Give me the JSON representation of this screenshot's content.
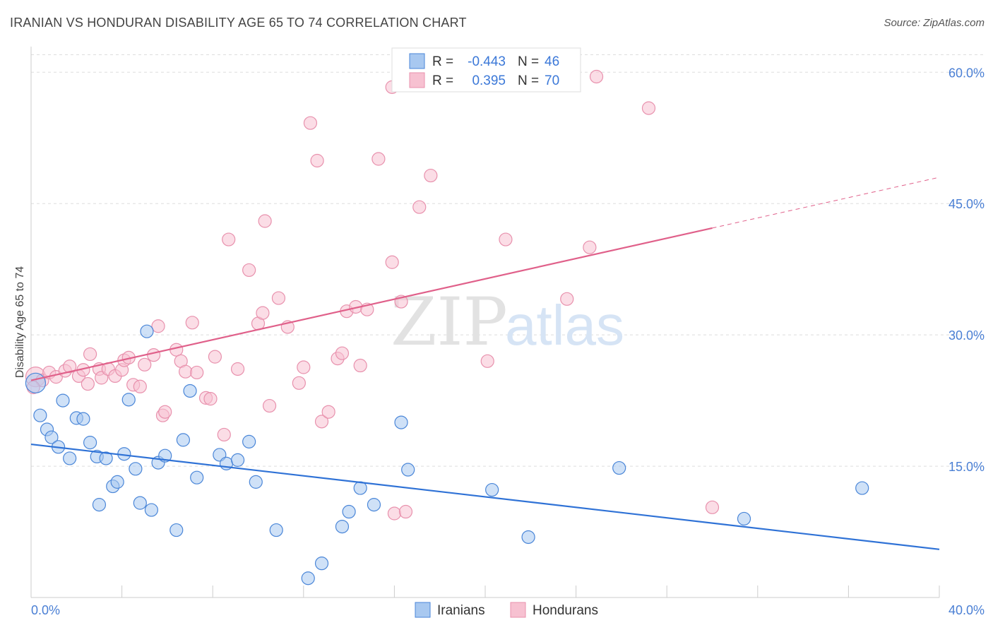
{
  "title": "IRANIAN VS HONDURAN DISABILITY AGE 65 TO 74 CORRELATION CHART",
  "source": "Source: ZipAtlas.com",
  "watermark": {
    "zip": "ZIP",
    "atlas": "atlas"
  },
  "colors": {
    "iranian_fill": "#a8c8f0",
    "iranian_stroke": "#4a86d8",
    "iranian_line": "#2f72d6",
    "honduran_fill": "#f7c1d1",
    "honduran_stroke": "#e891ad",
    "honduran_line": "#e0608a",
    "tick_text": "#4a7fd4",
    "grid": "#dddddd"
  },
  "legend": {
    "rows": [
      {
        "r_label": "R =",
        "r_value": "-0.443",
        "n_label": "N =",
        "n_value": "46"
      },
      {
        "r_label": "R =",
        "r_value": "0.395",
        "n_label": "N =",
        "n_value": "70"
      }
    ]
  },
  "chart_data": {
    "type": "scatter",
    "title": "IRANIAN VS HONDURAN DISABILITY AGE 65 TO 74 CORRELATION CHART",
    "xlabel": "",
    "ylabel": "Disability Age 65 to 74",
    "xlim": [
      0,
      40
    ],
    "ylim": [
      0,
      62
    ],
    "x_tick_labels": [
      "0.0%",
      "40.0%"
    ],
    "y_ticks": [
      15,
      30,
      45,
      60
    ],
    "y_tick_labels": [
      "15.0%",
      "30.0%",
      "45.0%",
      "60.0%"
    ],
    "grid": true,
    "legend_position": "top-center",
    "series": [
      {
        "name": "Iranians",
        "trend": {
          "x0": 0,
          "y0": 17.5,
          "x1": 40,
          "y1": 5.5,
          "dashed_from": null
        },
        "points": [
          [
            0.2,
            24.5
          ],
          [
            0.4,
            20.8
          ],
          [
            0.7,
            19.2
          ],
          [
            0.9,
            18.3
          ],
          [
            1.2,
            17.2
          ],
          [
            1.4,
            22.5
          ],
          [
            1.7,
            15.9
          ],
          [
            2.0,
            20.5
          ],
          [
            2.3,
            20.4
          ],
          [
            2.6,
            17.7
          ],
          [
            2.9,
            16.1
          ],
          [
            3.0,
            10.6
          ],
          [
            3.3,
            15.9
          ],
          [
            3.6,
            12.7
          ],
          [
            3.8,
            13.2
          ],
          [
            4.1,
            16.4
          ],
          [
            4.3,
            22.6
          ],
          [
            4.6,
            14.7
          ],
          [
            4.8,
            10.8
          ],
          [
            5.1,
            30.4
          ],
          [
            5.3,
            10.0
          ],
          [
            5.6,
            15.4
          ],
          [
            5.9,
            16.2
          ],
          [
            6.4,
            7.7
          ],
          [
            6.7,
            18.0
          ],
          [
            7.0,
            23.6
          ],
          [
            7.3,
            13.7
          ],
          [
            8.3,
            16.3
          ],
          [
            8.6,
            15.3
          ],
          [
            9.1,
            15.7
          ],
          [
            9.6,
            17.8
          ],
          [
            9.9,
            13.2
          ],
          [
            10.8,
            7.7
          ],
          [
            12.2,
            2.2
          ],
          [
            12.8,
            3.9
          ],
          [
            13.7,
            8.1
          ],
          [
            14.0,
            9.8
          ],
          [
            14.5,
            12.5
          ],
          [
            15.1,
            10.6
          ],
          [
            16.3,
            20.0
          ],
          [
            16.6,
            14.6
          ],
          [
            20.3,
            12.3
          ],
          [
            21.9,
            6.9
          ],
          [
            25.9,
            14.8
          ],
          [
            31.4,
            9.0
          ],
          [
            36.6,
            12.5
          ]
        ]
      },
      {
        "name": "Hondurans",
        "trend": {
          "x0": 0,
          "y0": 24.8,
          "x1": 40,
          "y1": 48.0,
          "dashed_from": 30
        },
        "points": [
          [
            0.2,
            25.2
          ],
          [
            0.5,
            24.8
          ],
          [
            0.8,
            25.7
          ],
          [
            1.1,
            25.2
          ],
          [
            1.5,
            25.9
          ],
          [
            1.7,
            26.4
          ],
          [
            2.1,
            25.3
          ],
          [
            2.3,
            26.0
          ],
          [
            2.5,
            24.4
          ],
          [
            2.6,
            27.8
          ],
          [
            3.0,
            26.1
          ],
          [
            3.1,
            25.1
          ],
          [
            3.4,
            26.1
          ],
          [
            3.7,
            25.3
          ],
          [
            4.0,
            26.0
          ],
          [
            4.1,
            27.1
          ],
          [
            4.3,
            27.4
          ],
          [
            4.5,
            24.3
          ],
          [
            4.8,
            24.1
          ],
          [
            5.0,
            26.6
          ],
          [
            5.4,
            27.7
          ],
          [
            5.6,
            31.0
          ],
          [
            5.8,
            20.8
          ],
          [
            5.9,
            21.2
          ],
          [
            6.4,
            28.3
          ],
          [
            6.6,
            27.0
          ],
          [
            6.8,
            25.8
          ],
          [
            7.1,
            31.4
          ],
          [
            7.3,
            25.7
          ],
          [
            7.7,
            22.8
          ],
          [
            7.9,
            22.7
          ],
          [
            8.1,
            27.5
          ],
          [
            8.5,
            18.6
          ],
          [
            8.7,
            40.9
          ],
          [
            9.1,
            26.1
          ],
          [
            9.6,
            37.4
          ],
          [
            10.0,
            31.3
          ],
          [
            10.2,
            32.5
          ],
          [
            10.3,
            43.0
          ],
          [
            10.5,
            21.9
          ],
          [
            10.9,
            34.2
          ],
          [
            11.3,
            30.9
          ],
          [
            11.8,
            24.5
          ],
          [
            12.0,
            26.3
          ],
          [
            12.3,
            54.2
          ],
          [
            12.6,
            49.9
          ],
          [
            12.8,
            20.1
          ],
          [
            13.1,
            21.2
          ],
          [
            13.5,
            27.3
          ],
          [
            13.7,
            27.9
          ],
          [
            13.9,
            32.7
          ],
          [
            14.3,
            33.2
          ],
          [
            14.5,
            26.5
          ],
          [
            14.8,
            32.9
          ],
          [
            15.3,
            50.1
          ],
          [
            15.9,
            58.3
          ],
          [
            15.9,
            38.3
          ],
          [
            16.0,
            9.6
          ],
          [
            16.3,
            33.8
          ],
          [
            16.5,
            9.8
          ],
          [
            17.1,
            44.6
          ],
          [
            17.6,
            48.2
          ],
          [
            20.1,
            27.0
          ],
          [
            20.9,
            40.9
          ],
          [
            23.6,
            34.1
          ],
          [
            24.6,
            40.0
          ],
          [
            24.9,
            59.5
          ],
          [
            27.2,
            55.9
          ],
          [
            30.0,
            10.3
          ],
          [
            0.1,
            24.0
          ]
        ]
      }
    ]
  }
}
